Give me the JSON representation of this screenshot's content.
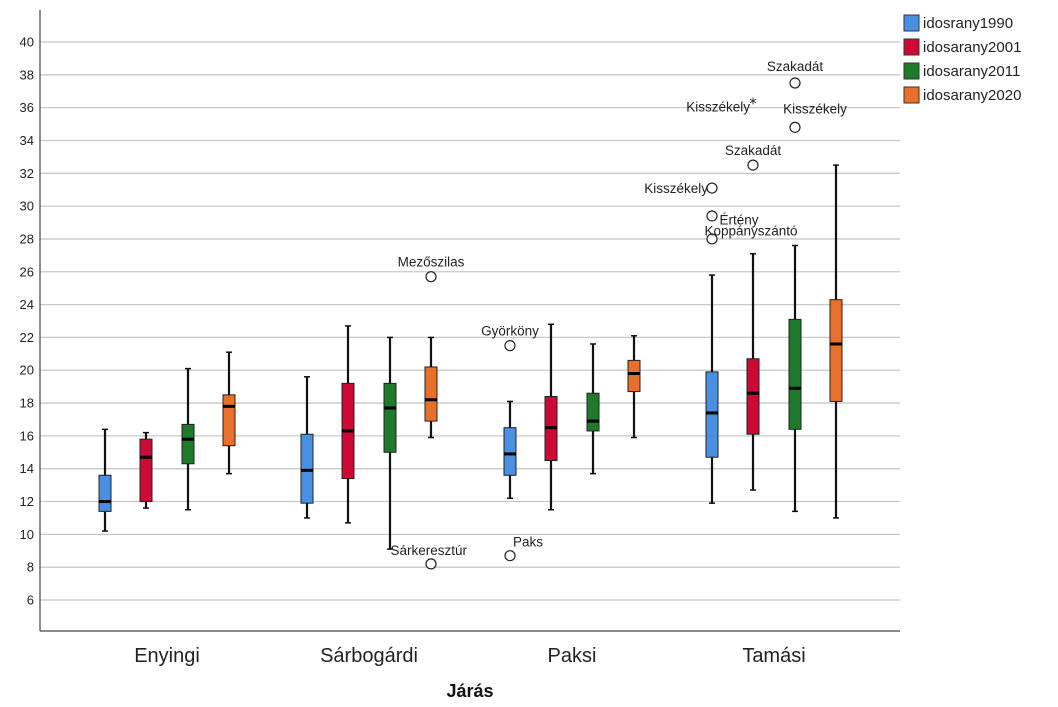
{
  "chart_data": {
    "type": "boxplot",
    "title": "",
    "xlabel": "Járás",
    "ylabel": "",
    "ylim": [
      4,
      42
    ],
    "yticks": [
      6,
      8,
      10,
      12,
      14,
      16,
      18,
      20,
      22,
      24,
      26,
      28,
      30,
      32,
      34,
      36,
      38,
      40
    ],
    "grid": "horizontal",
    "legend_position": "top-right",
    "categories": [
      "Enyingi",
      "Sárbogárdi",
      "Paksi",
      "Tamási"
    ],
    "series": [
      {
        "name": "idosrany1990",
        "color": "#4a90e2",
        "boxes": [
          {
            "min": 10.2,
            "q1": 11.4,
            "median": 12.0,
            "q3": 13.6,
            "max": 16.4
          },
          {
            "min": 11.0,
            "q1": 11.9,
            "median": 13.9,
            "q3": 16.1,
            "max": 19.6
          },
          {
            "min": 12.2,
            "q1": 13.6,
            "median": 14.9,
            "q3": 16.5,
            "max": 18.1
          },
          {
            "min": 11.9,
            "q1": 14.7,
            "median": 17.4,
            "q3": 19.9,
            "max": 25.8
          }
        ]
      },
      {
        "name": "idosarany2001",
        "color": "#cc0a35",
        "boxes": [
          {
            "min": 11.6,
            "q1": 12.0,
            "median": 14.7,
            "q3": 15.8,
            "max": 16.2
          },
          {
            "min": 10.7,
            "q1": 13.4,
            "median": 16.3,
            "q3": 19.2,
            "max": 22.7
          },
          {
            "min": 11.5,
            "q1": 14.5,
            "median": 16.5,
            "q3": 18.4,
            "max": 22.8
          },
          {
            "min": 12.7,
            "q1": 16.1,
            "median": 18.6,
            "q3": 20.7,
            "max": 27.1
          }
        ]
      },
      {
        "name": "idosarany2011",
        "color": "#1f7a2a",
        "boxes": [
          {
            "min": 11.5,
            "q1": 14.3,
            "median": 15.8,
            "q3": 16.7,
            "max": 20.1
          },
          {
            "min": 9.1,
            "q1": 15.0,
            "median": 17.7,
            "q3": 19.2,
            "max": 22.0
          },
          {
            "min": 13.7,
            "q1": 16.3,
            "median": 16.9,
            "q3": 18.6,
            "max": 21.6
          },
          {
            "min": 11.4,
            "q1": 16.4,
            "median": 18.9,
            "q3": 23.1,
            "max": 27.6
          }
        ]
      },
      {
        "name": "idosarany2020",
        "color": "#e8702a",
        "boxes": [
          {
            "min": 13.7,
            "q1": 15.4,
            "median": 17.8,
            "q3": 18.5,
            "max": 21.1
          },
          {
            "min": 15.9,
            "q1": 16.9,
            "median": 18.2,
            "q3": 20.2,
            "max": 22.0
          },
          {
            "min": 15.9,
            "q1": 18.7,
            "median": 19.8,
            "q3": 20.6,
            "max": 22.1
          },
          {
            "min": 11.0,
            "q1": 18.1,
            "median": 21.6,
            "q3": 24.3,
            "max": 32.5
          }
        ]
      }
    ],
    "outliers": [
      {
        "category": "Sárbogárdi",
        "series": "idosarany2020",
        "y": 25.7,
        "marker": "circle",
        "label": "Mezőszilas"
      },
      {
        "category": "Sárbogárdi",
        "series": "idosarany2020",
        "y": 8.2,
        "marker": "circle",
        "label": "Sárkeresztúr"
      },
      {
        "category": "Paksi",
        "series": "idosrany1990",
        "y": 21.5,
        "marker": "circle",
        "label": "Györköny"
      },
      {
        "category": "Paksi",
        "series": "idosrany1990",
        "y": 8.7,
        "marker": "circle",
        "label": "Paks"
      },
      {
        "category": "Tamási",
        "series": "idosrany1990",
        "y": 31.1,
        "marker": "circle",
        "label": "Kisszékely"
      },
      {
        "category": "Tamási",
        "series": "idosrany1990",
        "y": 29.4,
        "marker": "circle",
        "label": ""
      },
      {
        "category": "Tamási",
        "series": "idosrany1990",
        "y": 28.0,
        "marker": "circle",
        "label": ""
      },
      {
        "category": "Tamási",
        "series": "idosarany2001",
        "y": 36.3,
        "marker": "star",
        "label": "Kisszékely"
      },
      {
        "category": "Tamási",
        "series": "idosarany2001",
        "y": 32.5,
        "marker": "circle",
        "label": "Szakadát"
      },
      {
        "category": "Tamási",
        "series": "idosarany2001",
        "y": 27.1,
        "marker": "none",
        "label": "Értény"
      },
      {
        "category": "Tamási",
        "series": "idosarany2011",
        "y": 37.5,
        "marker": "circle",
        "label": "Szakadát"
      },
      {
        "category": "Tamási",
        "series": "idosarany2011",
        "y": 34.8,
        "marker": "circle",
        "label": "Kisszékely"
      },
      {
        "category": "Tamási",
        "series": "idosarany2011",
        "y": 27.6,
        "marker": "none",
        "label": "Koppányszántó"
      }
    ]
  }
}
